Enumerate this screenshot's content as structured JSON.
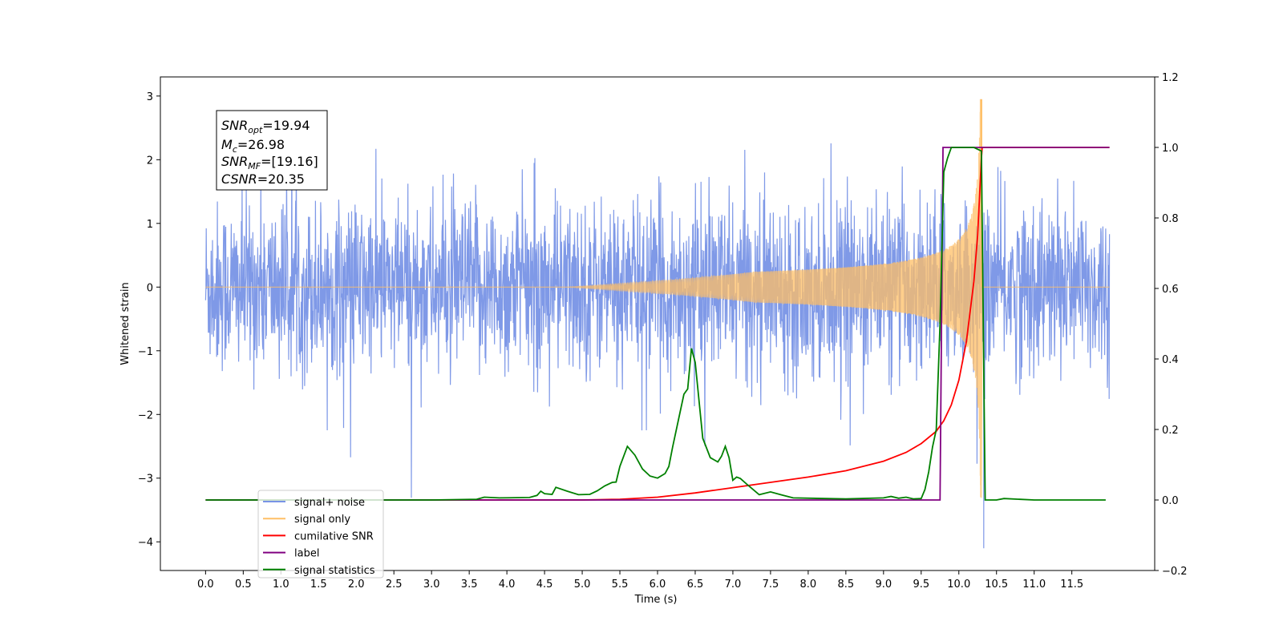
{
  "chart_data": {
    "type": "line",
    "xlabel": "Time (s)",
    "ylabel": "Whitened strain",
    "xlim": [
      -0.6,
      12.6
    ],
    "ylim": [
      -4.45,
      3.3
    ],
    "y2lim": [
      -0.2,
      1.2
    ],
    "xticks": [
      "0.0",
      "0.5",
      "1.0",
      "1.5",
      "2.0",
      "2.5",
      "3.0",
      "3.5",
      "4.0",
      "4.5",
      "5.0",
      "5.5",
      "6.0",
      "6.5",
      "7.0",
      "7.5",
      "8.0",
      "8.5",
      "9.0",
      "9.5",
      "10.0",
      "10.5",
      "11.0",
      "11.5"
    ],
    "yticks": [
      "3",
      "2",
      "1",
      "0",
      "−1",
      "−2",
      "−3",
      "−4"
    ],
    "y2ticks": [
      "1.2",
      "1.0",
      "0.8",
      "0.6",
      "0.4",
      "0.2",
      "0.0",
      "−0.2"
    ],
    "grid": false,
    "legend_position": "lower-left",
    "annotation": {
      "snr_opt": {
        "base": "SNR",
        "sub": "opt",
        "value": "=19.94"
      },
      "mc": {
        "base": "M",
        "sub": "c",
        "value": "=26.98"
      },
      "snr_mf": {
        "base": "SNR",
        "sub": "MF",
        "value": "=[19.16]"
      },
      "csnr": {
        "base": "CSNR",
        "value": "=20.35"
      }
    },
    "series": [
      {
        "name": "signal+ noise",
        "color": "#7893e6",
        "axis": "left",
        "kind": "noise",
        "x_range": [
          0.0,
          12.0
        ],
        "std": 0.78,
        "ymax": 2.8,
        "ymin": -4.1
      },
      {
        "name": "signal only",
        "color": "#ffbf66",
        "axis": "left",
        "kind": "chirp",
        "coalescence_time": 10.3,
        "peak_amplitude": 2.95,
        "min_amplitude": -3.3
      },
      {
        "name": "cumilative SNR",
        "color": "#ff0000",
        "axis": "right",
        "x": [
          0.0,
          4.0,
          5.0,
          5.5,
          6.0,
          6.5,
          7.0,
          7.5,
          8.0,
          8.5,
          9.0,
          9.3,
          9.5,
          9.7,
          9.8,
          9.9,
          10.0,
          10.1,
          10.2,
          10.25,
          10.3,
          10.31,
          11.0,
          12.0
        ],
        "y": [
          0.0,
          0.0,
          0.0,
          0.002,
          0.008,
          0.02,
          0.035,
          0.05,
          0.065,
          0.083,
          0.11,
          0.135,
          0.16,
          0.195,
          0.225,
          0.27,
          0.34,
          0.45,
          0.62,
          0.75,
          0.97,
          1.0,
          1.0,
          1.0
        ]
      },
      {
        "name": "label",
        "color": "#800080",
        "axis": "right",
        "x": [
          0.0,
          9.75,
          9.79,
          10.3,
          10.31,
          12.0
        ],
        "y": [
          0.0,
          0.0,
          1.0,
          1.0,
          1.0,
          1.0
        ]
      },
      {
        "name": "signal statistics",
        "color": "#008000",
        "axis": "right",
        "x": [
          0.0,
          3.0,
          3.6,
          3.7,
          3.9,
          4.3,
          4.4,
          4.45,
          4.5,
          4.6,
          4.65,
          4.8,
          4.95,
          5.1,
          5.2,
          5.3,
          5.4,
          5.45,
          5.5,
          5.6,
          5.7,
          5.8,
          5.9,
          6.0,
          6.1,
          6.15,
          6.2,
          6.3,
          6.35,
          6.4,
          6.45,
          6.5,
          6.6,
          6.7,
          6.8,
          6.85,
          6.9,
          6.95,
          7.0,
          7.05,
          7.1,
          7.2,
          7.35,
          7.5,
          7.65,
          7.8,
          8.5,
          9.0,
          9.1,
          9.2,
          9.3,
          9.4,
          9.5,
          9.55,
          9.6,
          9.65,
          9.7,
          9.75,
          9.8,
          9.85,
          9.9,
          10.0,
          10.2,
          10.3,
          10.35,
          10.5,
          10.6,
          11.0,
          11.95
        ],
        "y": [
          0.0,
          0.0,
          0.002,
          0.008,
          0.006,
          0.007,
          0.013,
          0.025,
          0.018,
          0.016,
          0.036,
          0.025,
          0.015,
          0.016,
          0.026,
          0.04,
          0.05,
          0.051,
          0.095,
          0.152,
          0.127,
          0.088,
          0.068,
          0.062,
          0.075,
          0.095,
          0.15,
          0.25,
          0.3,
          0.315,
          0.43,
          0.39,
          0.175,
          0.12,
          0.108,
          0.124,
          0.152,
          0.12,
          0.056,
          0.065,
          0.061,
          0.042,
          0.015,
          0.023,
          0.014,
          0.006,
          0.003,
          0.006,
          0.01,
          0.005,
          0.008,
          0.003,
          0.004,
          0.03,
          0.08,
          0.15,
          0.2,
          0.5,
          0.93,
          0.97,
          1.0,
          1.0,
          1.0,
          0.99,
          0.0,
          0.0,
          0.004,
          0.0,
          0.0
        ]
      }
    ]
  }
}
